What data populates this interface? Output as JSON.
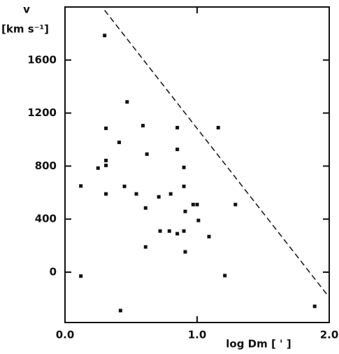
{
  "chart_data": {
    "type": "scatter",
    "y_label": "v",
    "y_unit": "[km s⁻¹]",
    "x_label": "log Dm [ ' ]",
    "xlim": [
      0,
      2.0
    ],
    "ylim": [
      -380,
      2000
    ],
    "xticks": [
      {
        "value": 0,
        "label": "0.0"
      },
      {
        "value": 1,
        "label": "1.0"
      },
      {
        "value": 2,
        "label": "2.0"
      }
    ],
    "yticks": [
      0,
      400,
      800,
      1200,
      1600
    ],
    "series": [
      {
        "color": "#111111",
        "x": [
          0.12,
          0.12,
          0.3,
          0.31,
          0.31,
          0.31,
          0.25,
          0.31,
          0.41,
          0.47,
          0.45,
          0.42,
          0.59,
          0.54,
          0.62,
          0.61,
          0.61,
          0.71,
          0.72,
          0.8,
          0.79,
          0.85,
          0.85,
          0.85,
          0.9,
          0.9,
          0.91,
          0.9,
          0.91,
          0.97,
          1.0,
          1.01,
          1.09,
          1.16,
          1.21,
          1.29,
          1.89
        ],
        "values": [
          650,
          -30,
          1785,
          1085,
          842,
          805,
          785,
          590,
          979,
          1284,
          647,
          -290,
          1105,
          590,
          890,
          484,
          190,
          568,
          310,
          590,
          310,
          1090,
          926,
          290,
          790,
          647,
          458,
          310,
          153,
          510,
          510,
          390,
          268,
          1090,
          -26,
          510,
          -258
        ]
      }
    ],
    "lines": [
      {
        "x": [
          0.3,
          2.0
        ],
        "values": [
          1975,
          -190
        ],
        "color": "#111111",
        "dashed": true
      }
    ]
  }
}
